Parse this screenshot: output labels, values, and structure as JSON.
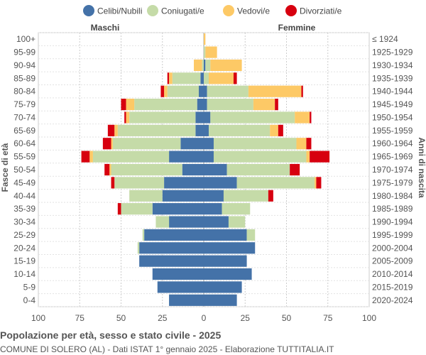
{
  "chart_data": {
    "type": "bar",
    "title": "Popolazione per età, sesso e stato civile - 2025",
    "subtitle": "COMUNE DI SOLERO (AL) - Dati ISTAT 1° gennaio 2025 - Elaborazione TUTTITALIA.IT",
    "left_label": "Maschi",
    "right_label": "Femmine",
    "ylabel_left": "Fasce di età",
    "ylabel_right": "Anni di nascita",
    "xlim": [
      -100,
      100
    ],
    "x_ticks": [
      "100",
      "75",
      "50",
      "25",
      "0",
      "25",
      "50",
      "75",
      "100"
    ],
    "legend_position": "top",
    "grid": true,
    "series": [
      {
        "name": "Celibi/Nubili",
        "color": "#4472a8"
      },
      {
        "name": "Coniugati/e",
        "color": "#c5dba8"
      },
      {
        "name": "Vedovi/e",
        "color": "#fdc966"
      },
      {
        "name": "Divorziati/e",
        "color": "#d7000f"
      }
    ],
    "rows": [
      {
        "age": "100+",
        "birth": "≤ 1924",
        "male": [
          0,
          0,
          0,
          0
        ],
        "female": [
          0,
          0,
          1,
          0
        ]
      },
      {
        "age": "95-99",
        "birth": "1925-1929",
        "male": [
          0,
          0,
          0,
          0
        ],
        "female": [
          0,
          1,
          7,
          0
        ]
      },
      {
        "age": "90-94",
        "birth": "1930-1934",
        "male": [
          0,
          1,
          5,
          0
        ],
        "female": [
          1,
          3,
          19,
          0
        ]
      },
      {
        "age": "85-89",
        "birth": "1935-1939",
        "male": [
          2,
          17,
          2,
          1
        ],
        "female": [
          0,
          3,
          15,
          2
        ]
      },
      {
        "age": "80-84",
        "birth": "1940-1944",
        "male": [
          3,
          19,
          2,
          2
        ],
        "female": [
          2,
          25,
          32,
          1
        ]
      },
      {
        "age": "75-79",
        "birth": "1945-1949",
        "male": [
          4,
          38,
          5,
          3
        ],
        "female": [
          2,
          28,
          13,
          2
        ]
      },
      {
        "age": "70-74",
        "birth": "1950-1954",
        "male": [
          5,
          40,
          2,
          1
        ],
        "female": [
          4,
          51,
          9,
          1
        ]
      },
      {
        "age": "65-69",
        "birth": "1955-1959",
        "male": [
          5,
          47,
          2,
          4
        ],
        "female": [
          3,
          37,
          5,
          3
        ]
      },
      {
        "age": "60-64",
        "birth": "1960-1964",
        "male": [
          14,
          41,
          1,
          5
        ],
        "female": [
          6,
          50,
          6,
          3
        ]
      },
      {
        "age": "55-59",
        "birth": "1965-1969",
        "male": [
          21,
          46,
          2,
          5
        ],
        "female": [
          6,
          56,
          2,
          12
        ]
      },
      {
        "age": "50-54",
        "birth": "1970-1974",
        "male": [
          13,
          43,
          1,
          3
        ],
        "female": [
          14,
          38,
          0,
          6
        ]
      },
      {
        "age": "45-49",
        "birth": "1975-1979",
        "male": [
          24,
          30,
          0,
          2
        ],
        "female": [
          20,
          47,
          1,
          3
        ]
      },
      {
        "age": "40-44",
        "birth": "1980-1984",
        "male": [
          25,
          20,
          0,
          0
        ],
        "female": [
          12,
          27,
          0,
          3
        ]
      },
      {
        "age": "35-39",
        "birth": "1985-1989",
        "male": [
          31,
          19,
          0,
          2
        ],
        "female": [
          11,
          17,
          0,
          0
        ]
      },
      {
        "age": "30-34",
        "birth": "1990-1994",
        "male": [
          21,
          8,
          0,
          0
        ],
        "female": [
          15,
          10,
          0,
          0
        ]
      },
      {
        "age": "25-29",
        "birth": "1995-1999",
        "male": [
          36,
          1,
          0,
          0
        ],
        "female": [
          26,
          5,
          0,
          0
        ]
      },
      {
        "age": "20-24",
        "birth": "2000-2004",
        "male": [
          39,
          1,
          0,
          0
        ],
        "female": [
          31,
          0,
          0,
          0
        ]
      },
      {
        "age": "15-19",
        "birth": "2005-2009",
        "male": [
          39,
          0,
          0,
          0
        ],
        "female": [
          26,
          0,
          0,
          0
        ]
      },
      {
        "age": "10-14",
        "birth": "2010-2014",
        "male": [
          31,
          0,
          0,
          0
        ],
        "female": [
          29,
          0,
          0,
          0
        ]
      },
      {
        "age": "5-9",
        "birth": "2015-2019",
        "male": [
          28,
          0,
          0,
          0
        ],
        "female": [
          23,
          0,
          0,
          0
        ]
      },
      {
        "age": "0-4",
        "birth": "2020-2024",
        "male": [
          21,
          0,
          0,
          0
        ],
        "female": [
          20,
          0,
          0,
          0
        ]
      }
    ]
  }
}
